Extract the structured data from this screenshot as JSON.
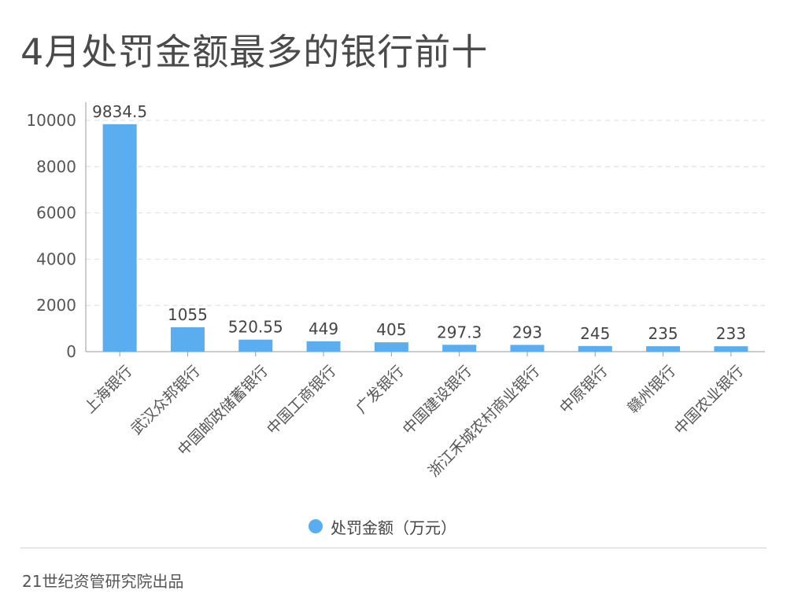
{
  "title": "4月处罚金额最多的银行前十",
  "footer": "21世纪资管研究院出品",
  "chart_data": {
    "type": "bar",
    "title": "4月处罚金额最多的银行前十",
    "categories": [
      "上海银行",
      "武汉众邦银行",
      "中国邮政储蓄银行",
      "中国工商银行",
      "广发银行",
      "中国建设银行",
      "浙江禾城农村商业银行",
      "中原银行",
      "赣州银行",
      "中国农业银行"
    ],
    "series": [
      {
        "name": "处罚金额（万元）",
        "values": [
          9834.5,
          1055,
          520.55,
          449,
          405,
          297.3,
          293,
          245,
          235,
          233
        ],
        "labels": [
          "9834.5",
          "1055",
          "520.55",
          "449",
          "405",
          "297.3",
          "293",
          "245",
          "235",
          "233"
        ],
        "color": "#5aaef0"
      }
    ],
    "ylim": [
      0,
      10000
    ],
    "yticks": [
      0,
      2000,
      4000,
      6000,
      8000,
      10000
    ],
    "xlabel": "",
    "ylabel": "",
    "grid": "horizontal dashed",
    "legend_position": "bottom"
  }
}
